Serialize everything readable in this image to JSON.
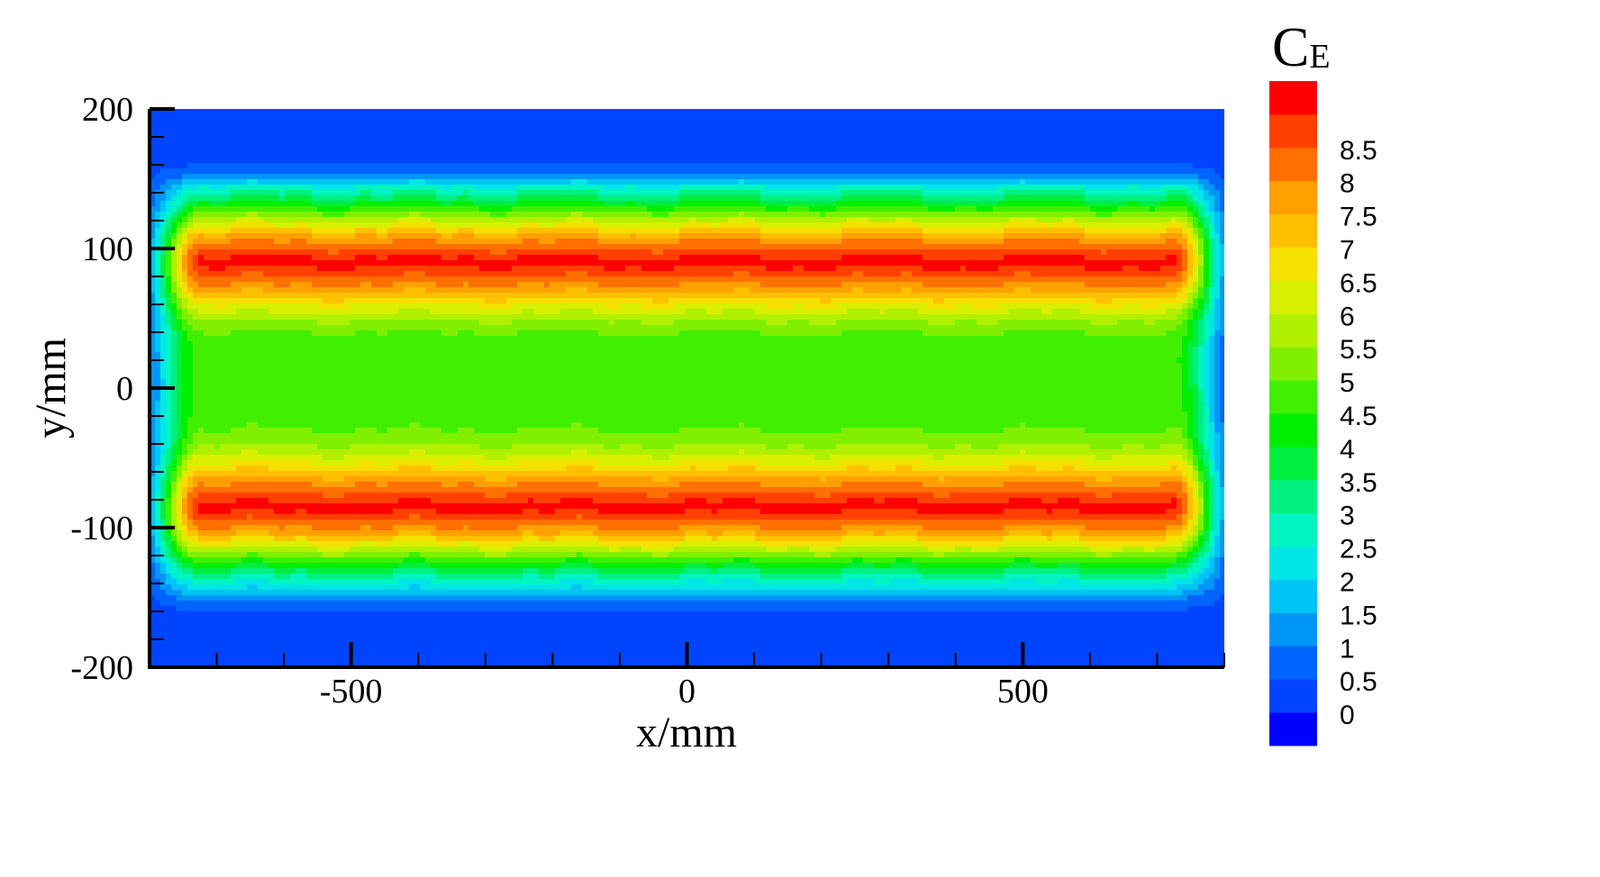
{
  "chart_data": {
    "type": "heatmap",
    "xlabel": "x/mm",
    "ylabel": "y/mm",
    "xlim": [
      -800,
      800
    ],
    "ylim": [
      -200,
      200
    ],
    "x_major_ticks": [
      -500,
      0,
      500
    ],
    "x_minor_step": 100,
    "y_major_ticks": [
      -200,
      -100,
      0,
      100,
      200
    ],
    "y_minor_step": 20,
    "x_tick_labels": [
      "-500",
      "0",
      "500"
    ],
    "y_tick_labels": [
      "-200",
      "-100",
      "0",
      "100",
      "200"
    ],
    "colorbar": {
      "title": "C",
      "title_subscript": "E",
      "levels": [
        0,
        0.5,
        1,
        1.5,
        2,
        2.5,
        3,
        3.5,
        4,
        4.5,
        5,
        5.5,
        6,
        6.5,
        7,
        7.5,
        8,
        8.5
      ],
      "labels": [
        "0",
        "0.5",
        "1",
        "1.5",
        "2",
        "2.5",
        "3",
        "3.5",
        "4",
        "4.5",
        "5",
        "5.5",
        "6",
        "6.5",
        "7",
        "7.5",
        "8",
        "8.5"
      ],
      "colors": [
        "#0000ff",
        "#0044ff",
        "#0064ff",
        "#0096f5",
        "#00c4f4",
        "#00e6e6",
        "#00f5c0",
        "#00f080",
        "#00ee40",
        "#00ee00",
        "#40f000",
        "#80f000",
        "#b0f000",
        "#d8f000",
        "#f5e000",
        "#ffc000",
        "#ffa000",
        "#ff7000",
        "#ff4000",
        "#ff0000"
      ]
    },
    "field": {
      "description_values": "C_E peaks ~8.7 along two bands near y=+90 and y=-90, ~4.5 along y=0 between them, ~0.3 outside |y|>160, bands span x≈-780..780",
      "band_centers_y": [
        90,
        -85
      ],
      "band_peak": 8.8,
      "center_value": 4.5,
      "background_value": 0.35,
      "x_extent": [
        -780,
        780
      ]
    }
  }
}
